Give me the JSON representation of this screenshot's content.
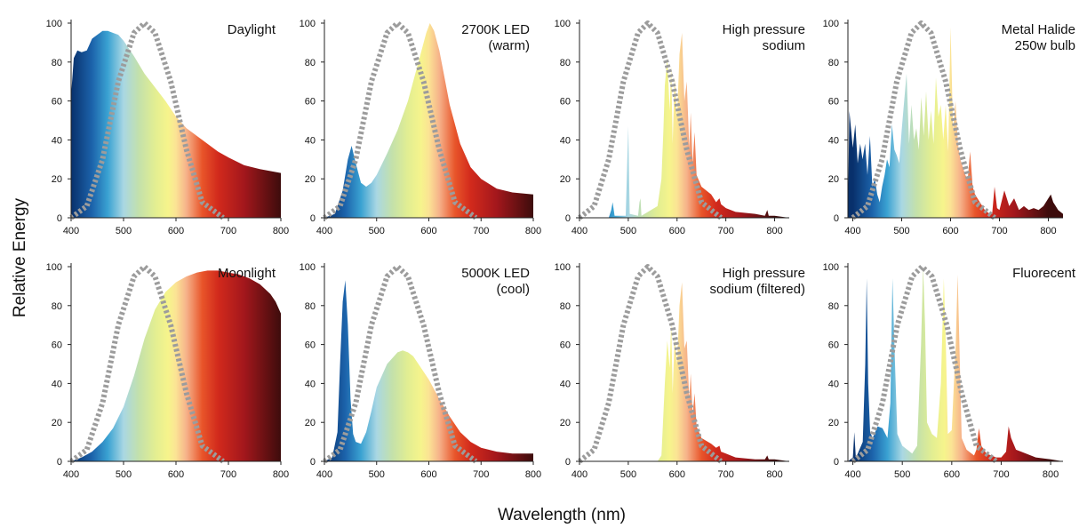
{
  "figure": {
    "ylabel": "Relative Energy",
    "xlabel": "Wavelength (nm)"
  },
  "spectrum_stops": [
    {
      "nm": 400,
      "color": "#08306b"
    },
    {
      "nm": 440,
      "color": "#1c63ab"
    },
    {
      "nm": 470,
      "color": "#3aa2d2"
    },
    {
      "nm": 500,
      "color": "#a9d7e3"
    },
    {
      "nm": 530,
      "color": "#c4e1aa"
    },
    {
      "nm": 560,
      "color": "#e2ee92"
    },
    {
      "nm": 585,
      "color": "#f6f48c"
    },
    {
      "nm": 600,
      "color": "#fbe394"
    },
    {
      "nm": 620,
      "color": "#f6b28a"
    },
    {
      "nm": 650,
      "color": "#e8552a"
    },
    {
      "nm": 680,
      "color": "#d22a1c"
    },
    {
      "nm": 730,
      "color": "#a3171c"
    },
    {
      "nm": 800,
      "color": "#3d0c0c"
    }
  ],
  "chart_data": [
    {
      "type": "area",
      "title_lines": [
        "Daylight"
      ],
      "ylim": [
        0,
        100
      ],
      "xlim": [
        400,
        800
      ],
      "xticks": [
        400,
        500,
        600,
        700,
        800
      ],
      "yticks": [
        0,
        20,
        40,
        60,
        80,
        100
      ],
      "series": [
        {
          "x": [
            400,
            405,
            412,
            420,
            430,
            440,
            450,
            460,
            470,
            480,
            490,
            500,
            520,
            540,
            560,
            580,
            600,
            620,
            650,
            680,
            700,
            730,
            760,
            800
          ],
          "y": [
            63,
            82,
            86,
            85,
            86,
            92,
            94,
            96,
            96,
            95,
            94,
            91,
            83,
            74,
            67,
            60,
            52,
            46,
            40,
            34,
            31,
            27,
            25,
            23
          ]
        }
      ],
      "sensitivity_curve": {
        "x": [
          400,
          430,
          460,
          490,
          520,
          540,
          560,
          590,
          620,
          650,
          690
        ],
        "y": [
          0,
          6,
          30,
          70,
          95,
          100,
          95,
          70,
          35,
          8,
          0
        ]
      }
    },
    {
      "type": "area",
      "title_lines": [
        "2700K LED",
        "(warm)"
      ],
      "ylim": [
        0,
        100
      ],
      "xlim": [
        400,
        800
      ],
      "xticks": [
        400,
        500,
        600,
        700,
        800
      ],
      "yticks": [
        0,
        20,
        40,
        60,
        80,
        100
      ],
      "series": [
        {
          "x": [
            400,
            420,
            435,
            445,
            452,
            460,
            470,
            480,
            490,
            500,
            520,
            540,
            560,
            580,
            595,
            602,
            610,
            620,
            640,
            660,
            680,
            700,
            730,
            760,
            800
          ],
          "y": [
            0,
            2,
            14,
            30,
            37,
            28,
            18,
            16,
            18,
            22,
            33,
            45,
            60,
            80,
            95,
            100,
            96,
            86,
            58,
            38,
            26,
            20,
            15,
            13,
            12
          ]
        }
      ],
      "sensitivity_curve": {
        "x": [
          400,
          430,
          460,
          490,
          520,
          540,
          560,
          590,
          620,
          650,
          690
        ],
        "y": [
          0,
          6,
          30,
          70,
          95,
          100,
          95,
          70,
          35,
          8,
          0
        ]
      }
    },
    {
      "type": "area",
      "title_lines": [
        "High pressure",
        "sodium"
      ],
      "ylim": [
        0,
        100
      ],
      "xlim": [
        400,
        830
      ],
      "xticks": [
        400,
        500,
        600,
        700,
        800
      ],
      "yticks": [
        0,
        20,
        40,
        60,
        80,
        100
      ],
      "series": [
        {
          "x": [
            400,
            460,
            465,
            468,
            472,
            495,
            498,
            500,
            503,
            520,
            523,
            525,
            527,
            560,
            568,
            572,
            575,
            580,
            585,
            588,
            591,
            595,
            600,
            605,
            610,
            615,
            620,
            625,
            628,
            632,
            636,
            640,
            650,
            670,
            680,
            687,
            690,
            700,
            720,
            760,
            780,
            785,
            788,
            800,
            830
          ],
          "y": [
            0,
            0,
            4,
            8,
            1,
            1,
            30,
            47,
            2,
            1,
            8,
            10,
            1,
            6,
            20,
            45,
            68,
            82,
            55,
            78,
            38,
            72,
            52,
            84,
            95,
            60,
            70,
            36,
            54,
            28,
            44,
            22,
            16,
            12,
            8,
            10,
            7,
            5,
            3,
            2,
            1,
            4,
            1,
            1,
            0
          ]
        }
      ],
      "sensitivity_curve": {
        "x": [
          400,
          430,
          460,
          490,
          520,
          540,
          560,
          590,
          620,
          650,
          690
        ],
        "y": [
          0,
          6,
          30,
          70,
          95,
          100,
          95,
          70,
          35,
          8,
          0
        ]
      }
    },
    {
      "type": "area",
      "title_lines": [
        "Metal Halide",
        "250w bulb"
      ],
      "ylim": [
        0,
        100
      ],
      "xlim": [
        390,
        830
      ],
      "xticks": [
        400,
        500,
        600,
        700,
        800
      ],
      "yticks": [
        0,
        20,
        40,
        60,
        80,
        100
      ],
      "series": [
        {
          "x": [
            390,
            393,
            400,
            405,
            410,
            415,
            420,
            425,
            430,
            435,
            440,
            445,
            450,
            455,
            460,
            465,
            470,
            475,
            480,
            485,
            490,
            495,
            500,
            505,
            510,
            515,
            520,
            525,
            530,
            535,
            540,
            545,
            550,
            555,
            560,
            565,
            570,
            575,
            580,
            585,
            590,
            595,
            600,
            605,
            610,
            615,
            620,
            625,
            630,
            635,
            640,
            645,
            650,
            660,
            670,
            680,
            685,
            690,
            695,
            700,
            710,
            720,
            730,
            740,
            750,
            760,
            770,
            780,
            790,
            800,
            805,
            810,
            815,
            820,
            830
          ],
          "y": [
            0,
            55,
            36,
            48,
            28,
            38,
            30,
            38,
            22,
            42,
            16,
            20,
            12,
            8,
            16,
            22,
            30,
            26,
            48,
            35,
            32,
            28,
            45,
            60,
            74,
            38,
            58,
            40,
            46,
            35,
            62,
            42,
            65,
            40,
            55,
            38,
            72,
            52,
            58,
            40,
            58,
            34,
            98,
            45,
            60,
            38,
            30,
            26,
            22,
            20,
            34,
            16,
            12,
            8,
            4,
            2,
            2,
            16,
            5,
            4,
            14,
            6,
            10,
            4,
            6,
            4,
            5,
            4,
            6,
            10,
            12,
            8,
            6,
            4,
            2
          ]
        }
      ],
      "sensitivity_curve": {
        "x": [
          400,
          430,
          460,
          490,
          520,
          540,
          560,
          590,
          620,
          650,
          690
        ],
        "y": [
          0,
          6,
          30,
          70,
          95,
          100,
          95,
          70,
          35,
          8,
          0
        ]
      }
    },
    {
      "type": "area",
      "title_lines": [
        "Moonlight"
      ],
      "ylim": [
        0,
        100
      ],
      "xlim": [
        400,
        800
      ],
      "xticks": [
        400,
        500,
        600,
        700,
        800
      ],
      "yticks": [
        0,
        20,
        40,
        60,
        80,
        100
      ],
      "series": [
        {
          "x": [
            400,
            420,
            440,
            460,
            480,
            500,
            520,
            540,
            560,
            580,
            600,
            620,
            640,
            660,
            680,
            700,
            720,
            740,
            760,
            780,
            790,
            800,
            800
          ],
          "y": [
            0,
            2,
            5,
            10,
            17,
            28,
            44,
            63,
            78,
            87,
            92,
            95,
            97,
            98,
            98,
            97,
            96,
            94,
            91,
            86,
            82,
            76,
            68
          ]
        }
      ],
      "sensitivity_curve": {
        "x": [
          400,
          430,
          460,
          490,
          520,
          540,
          560,
          590,
          620,
          650,
          690
        ],
        "y": [
          0,
          6,
          30,
          70,
          95,
          100,
          95,
          70,
          35,
          8,
          0
        ]
      }
    },
    {
      "type": "area",
      "title_lines": [
        "5000K LED",
        "(cool)"
      ],
      "ylim": [
        0,
        100
      ],
      "xlim": [
        400,
        800
      ],
      "xticks": [
        400,
        500,
        600,
        700,
        800
      ],
      "yticks": [
        0,
        20,
        40,
        60,
        80,
        100
      ],
      "series": [
        {
          "x": [
            400,
            415,
            425,
            430,
            435,
            440,
            445,
            450,
            455,
            460,
            470,
            480,
            490,
            500,
            520,
            540,
            550,
            560,
            570,
            580,
            600,
            620,
            640,
            660,
            680,
            700,
            730,
            760,
            800
          ],
          "y": [
            0,
            2,
            15,
            50,
            82,
            93,
            70,
            32,
            14,
            10,
            9,
            15,
            26,
            38,
            50,
            56,
            57,
            56,
            54,
            50,
            42,
            32,
            23,
            15,
            10,
            7,
            5,
            4,
            4
          ]
        }
      ],
      "sensitivity_curve": {
        "x": [
          400,
          430,
          460,
          490,
          520,
          540,
          560,
          590,
          620,
          650,
          690
        ],
        "y": [
          0,
          6,
          30,
          70,
          95,
          100,
          95,
          70,
          35,
          8,
          0
        ]
      }
    },
    {
      "type": "area",
      "title_lines": [
        "High pressure",
        "sodium (filtered)"
      ],
      "ylim": [
        0,
        100
      ],
      "xlim": [
        400,
        830
      ],
      "xticks": [
        400,
        500,
        600,
        700,
        800
      ],
      "yticks": [
        0,
        20,
        40,
        60,
        80,
        100
      ],
      "series": [
        {
          "x": [
            400,
            560,
            568,
            575,
            580,
            585,
            588,
            591,
            595,
            600,
            605,
            610,
            615,
            620,
            625,
            628,
            632,
            636,
            640,
            650,
            670,
            680,
            687,
            690,
            700,
            720,
            760,
            780,
            785,
            788,
            800,
            830
          ],
          "y": [
            0,
            0,
            3,
            40,
            62,
            48,
            72,
            35,
            64,
            50,
            80,
            92,
            58,
            62,
            32,
            45,
            24,
            35,
            18,
            12,
            9,
            7,
            8,
            5,
            4,
            2,
            1,
            1,
            3,
            1,
            1,
            0
          ]
        }
      ],
      "sensitivity_curve": {
        "x": [
          400,
          430,
          460,
          490,
          520,
          540,
          560,
          590,
          620,
          650,
          690
        ],
        "y": [
          0,
          6,
          30,
          70,
          95,
          100,
          95,
          70,
          35,
          8,
          0
        ]
      }
    },
    {
      "type": "area",
      "title_lines": [
        "Fluorecent"
      ],
      "ylim": [
        0,
        100
      ],
      "xlim": [
        390,
        825
      ],
      "xticks": [
        400,
        500,
        600,
        700,
        800
      ],
      "yticks": [
        0,
        20,
        40,
        60,
        80,
        100
      ],
      "series": [
        {
          "x": [
            390,
            400,
            403,
            406,
            410,
            420,
            425,
            428,
            431,
            435,
            440,
            450,
            460,
            470,
            476,
            480,
            484,
            490,
            500,
            510,
            520,
            530,
            538,
            542,
            546,
            550,
            560,
            570,
            578,
            584,
            588,
            592,
            600,
            608,
            612,
            616,
            620,
            630,
            645,
            650,
            655,
            660,
            670,
            690,
            700,
            710,
            715,
            720,
            730,
            750,
            770,
            800,
            825
          ],
          "y": [
            0,
            2,
            15,
            2,
            4,
            10,
            50,
            94,
            40,
            15,
            12,
            18,
            17,
            12,
            30,
            94,
            60,
            14,
            8,
            6,
            4,
            8,
            60,
            100,
            70,
            20,
            14,
            12,
            40,
            94,
            60,
            14,
            16,
            60,
            96,
            55,
            12,
            6,
            3,
            6,
            17,
            8,
            4,
            2,
            2,
            5,
            18,
            12,
            6,
            4,
            2,
            1,
            0
          ]
        }
      ],
      "sensitivity_curve": {
        "x": [
          400,
          430,
          460,
          490,
          520,
          540,
          560,
          590,
          620,
          650,
          690
        ],
        "y": [
          0,
          6,
          30,
          70,
          95,
          100,
          95,
          70,
          35,
          8,
          0
        ]
      }
    }
  ]
}
